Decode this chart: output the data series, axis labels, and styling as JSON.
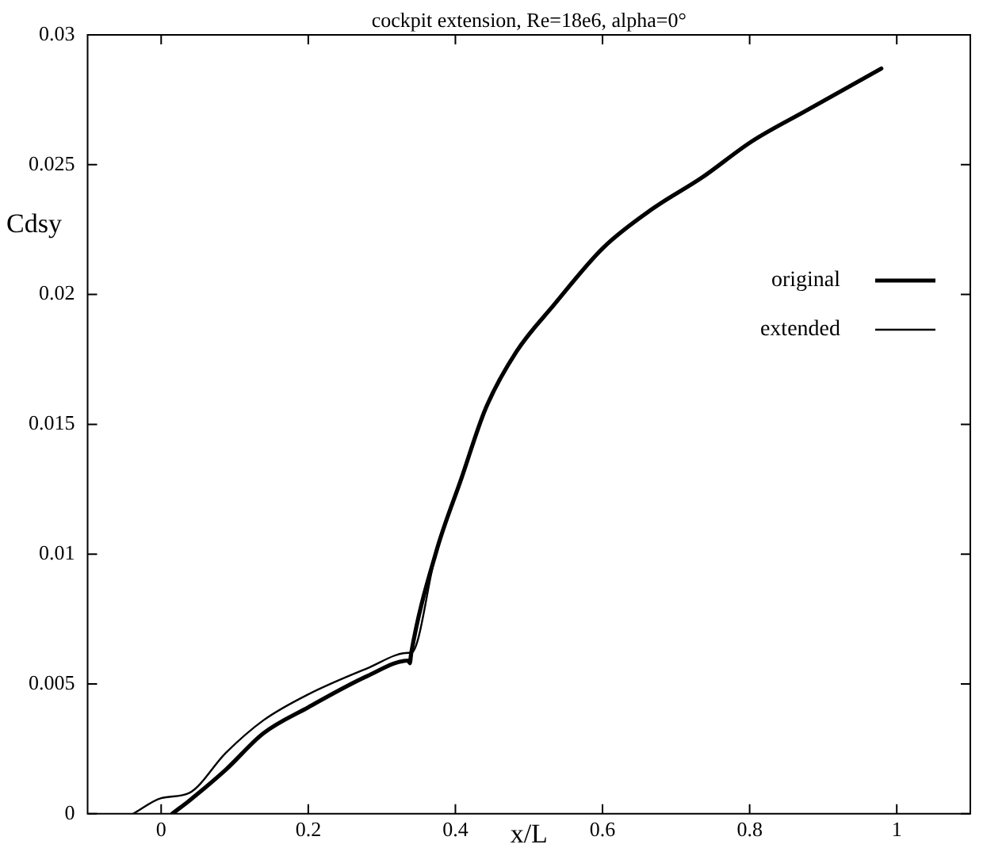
{
  "chart_data": {
    "type": "line",
    "title": "cockpit extension, Re=18e6, alpha=0°",
    "xlabel": "x/L",
    "ylabel": "Cdsy",
    "xlim": [
      -0.1,
      1.1
    ],
    "xticks": [
      0,
      0.2,
      0.4,
      0.6,
      0.8,
      1
    ],
    "ylim": [
      0,
      0.03
    ],
    "yticks": [
      0,
      0.005,
      0.01,
      0.015,
      0.02,
      0.025,
      0.03
    ],
    "grid": false,
    "legend": "right",
    "marker": "none",
    "line_style": "solid",
    "series": [
      {
        "name": "original",
        "color": "#000000",
        "x": [
          0.015,
          0.038,
          0.088,
          0.139,
          0.2,
          0.28,
          0.336,
          0.338,
          0.34,
          0.374,
          0.408,
          0.441,
          0.483,
          0.534,
          0.601,
          0.668,
          0.735,
          0.803,
          0.878,
          0.979
        ],
        "values": [
          0,
          0.0005,
          0.0017,
          0.0031,
          0.0041,
          0.0053,
          0.0059,
          0.0058,
          0.0062,
          0.0101,
          0.0129,
          0.0156,
          0.0178,
          0.0196,
          0.0218,
          0.0233,
          0.0245,
          0.0259,
          0.0271,
          0.0287
        ]
      },
      {
        "name": "extended",
        "color": "#000000",
        "x": [
          -0.038,
          0,
          0.038,
          0.088,
          0.139,
          0.2,
          0.28,
          0.336,
          0.34,
          0.374,
          0.408,
          0.441,
          0.483,
          0.534,
          0.601,
          0.668,
          0.735,
          0.803,
          0.878,
          0.979
        ],
        "values": [
          0,
          0.0006,
          0.0008,
          0.00235,
          0.0036,
          0.0046,
          0.0056,
          0.0062,
          0.0062,
          0.0101,
          0.0129,
          0.0156,
          0.0178,
          0.0196,
          0.0218,
          0.0233,
          0.0245,
          0.0259,
          0.0271,
          0.0287
        ]
      }
    ]
  }
}
